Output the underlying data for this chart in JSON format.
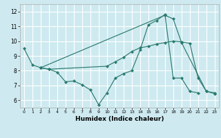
{
  "xlabel": "Humidex (Indice chaleur)",
  "background_color": "#ceeaf0",
  "line_color": "#2a7a6e",
  "grid_color": "#ffffff",
  "xlim": [
    -0.5,
    23.5
  ],
  "ylim": [
    5.5,
    12.5
  ],
  "xticks": [
    0,
    1,
    2,
    3,
    4,
    5,
    6,
    7,
    8,
    9,
    10,
    11,
    12,
    13,
    14,
    15,
    16,
    17,
    18,
    19,
    20,
    21,
    22,
    23
  ],
  "yticks": [
    6,
    7,
    8,
    9,
    10,
    11,
    12
  ],
  "series1_x": [
    0,
    1,
    2,
    3,
    4,
    5,
    6,
    7,
    8,
    9,
    10,
    11,
    12,
    13,
    14,
    15,
    16,
    17,
    18,
    19,
    20,
    21
  ],
  "series1_y": [
    9.5,
    8.4,
    8.2,
    8.1,
    7.9,
    7.25,
    7.3,
    7.05,
    6.7,
    5.7,
    6.5,
    7.5,
    7.8,
    8.0,
    9.4,
    11.1,
    11.4,
    11.8,
    7.5,
    7.5,
    6.6,
    6.5
  ],
  "series2_x": [
    2,
    3,
    10,
    11,
    12,
    13,
    14,
    15,
    16,
    17,
    18,
    19,
    20,
    21,
    22,
    23
  ],
  "series2_y": [
    8.2,
    8.1,
    8.3,
    8.6,
    8.9,
    9.3,
    9.55,
    9.65,
    9.8,
    9.9,
    10.0,
    9.95,
    9.85,
    7.5,
    6.6,
    6.5
  ],
  "series3_x": [
    2,
    17,
    18,
    19,
    22,
    23
  ],
  "series3_y": [
    8.2,
    11.75,
    11.5,
    9.9,
    6.6,
    6.45
  ]
}
